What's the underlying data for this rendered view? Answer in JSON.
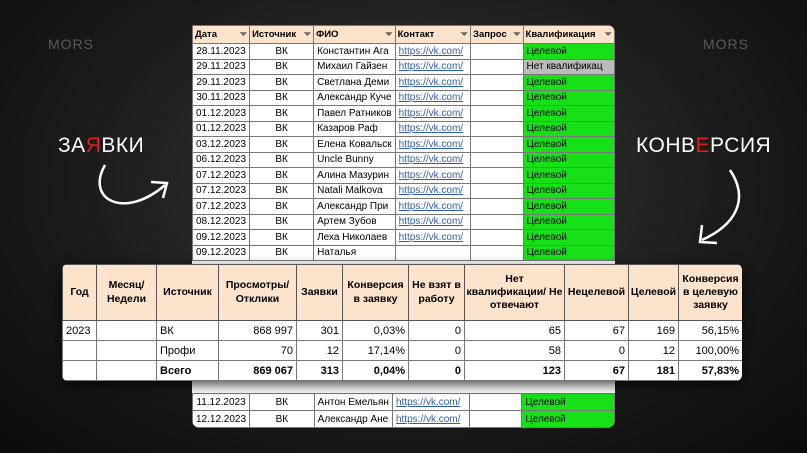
{
  "watermark": "MORS",
  "labels": {
    "left_pre": "ЗА",
    "left_red": "Я",
    "left_post": "ВКИ",
    "right_pre": "КОНВ",
    "right_red": "Е",
    "right_post": "РСИЯ",
    "accent": "#e21b1b"
  },
  "leads": {
    "headers": [
      "Дата",
      "Источник",
      "ФИО",
      "Контакт",
      "Запрос",
      "Квалификация"
    ],
    "rows": [
      [
        "28.11.2023",
        "ВК",
        "Константин Ага",
        "https://vk.com/",
        "",
        "Целевой"
      ],
      [
        "29.11.2023",
        "ВК",
        "Михаил Гайзен",
        "https://vk.com/",
        "",
        "Нет квалификац"
      ],
      [
        "29.11.2023",
        "ВК",
        "Светлана Деми",
        "https://vk.com/",
        "",
        "Целевой"
      ],
      [
        "30.11.2023",
        "ВК",
        "Александр Куче",
        "https://vk.com/",
        "",
        "Целевой"
      ],
      [
        "01.12.2023",
        "ВК",
        "Павел Ратников",
        "https://vk.com/",
        "",
        "Целевой"
      ],
      [
        "01.12.2023",
        "ВК",
        "Казаров Раф",
        "https://vk.com/",
        "",
        "Целевой"
      ],
      [
        "03.12.2023",
        "ВК",
        "Елена Ковальск",
        "https://vk.com/",
        "",
        "Целевой"
      ],
      [
        "06.12.2023",
        "ВК",
        "Uncle Bunny",
        "https://vk.com/",
        "",
        "Целевой"
      ],
      [
        "07.12.2023",
        "ВК",
        "Алина Мазурин",
        "https://vk.com/",
        "",
        "Целевой"
      ],
      [
        "07.12.2023",
        "ВК",
        "Natali Malkova",
        "https://vk.com/",
        "",
        "Целевой"
      ],
      [
        "07.12.2023",
        "ВК",
        "Александр При",
        "https://vk.com/",
        "",
        "Целевой"
      ],
      [
        "08.12.2023",
        "ВК",
        "Артем Зубов",
        "https://vk.com/",
        "",
        "Целевой"
      ],
      [
        "09.12.2023",
        "ВК",
        "Леха Николаев",
        "https://vk.com/",
        "",
        "Целевой"
      ],
      [
        "09.12.2023",
        "ВК",
        "Наталья",
        "",
        "",
        "Целевой"
      ]
    ],
    "bottom_rows": [
      [
        "11.12.2023",
        "ВК",
        "Антон Емельян",
        "https://vk.com/",
        "",
        "Целевой"
      ],
      [
        "12.12.2023",
        "ВК",
        "Александр Ане",
        "https://vk.com/",
        "",
        "Целевой"
      ]
    ],
    "colors": {
      "target": "#18e018",
      "no_qual": "#bbbbbb",
      "header": "#fde3cc"
    }
  },
  "summary": {
    "headers": [
      "Год",
      "Месяц/ Недели",
      "Источник",
      "Просмотры/ Отклики",
      "Заявки",
      "Конверсия в заявку",
      "Не взят в работу",
      "Нет квалификации/ Не отвечают",
      "Нецелевой",
      "Целевой",
      "Конверсия в целевую заявку"
    ],
    "rows": [
      [
        "2023",
        "",
        "ВК",
        "868 997",
        "301",
        "0,03%",
        "0",
        "65",
        "67",
        "169",
        "56,15%"
      ],
      [
        "",
        "",
        "Профи",
        "70",
        "12",
        "17,14%",
        "0",
        "58",
        "0",
        "12",
        "100,00%"
      ],
      [
        "",
        "",
        "Всего",
        "869 067",
        "313",
        "0,04%",
        "0",
        "123",
        "67",
        "181",
        "57,83%"
      ]
    ]
  }
}
